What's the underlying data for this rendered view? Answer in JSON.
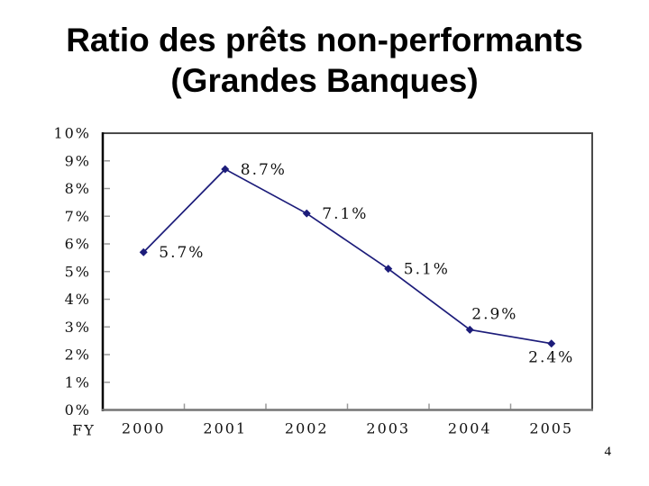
{
  "slide": {
    "title_line1": "Ratio des prêts non-performants",
    "title_line2": "(Grandes Banques)",
    "page_number": "4"
  },
  "chart_data": {
    "type": "line",
    "title": "Ratio des prêts non-performants (Grandes Banques)",
    "xlabel": "FY",
    "ylabel": "",
    "categories": [
      "2000",
      "2001",
      "2002",
      "2003",
      "2004",
      "2005"
    ],
    "series": [
      {
        "name": "npl-ratio",
        "values": [
          5.7,
          8.7,
          7.1,
          5.1,
          2.9,
          2.4
        ],
        "color": "#1c1c7a",
        "marker": "diamond"
      }
    ],
    "data_labels": [
      {
        "text": "5.7%",
        "placement": "right"
      },
      {
        "text": "8.7%",
        "placement": "right"
      },
      {
        "text": "7.1%",
        "placement": "right"
      },
      {
        "text": "5.1%",
        "placement": "right"
      },
      {
        "text": "2.9%",
        "placement": "above"
      },
      {
        "text": "2.4%",
        "placement": "below"
      }
    ],
    "y_tick_labels": [
      "10%",
      "9%",
      "8%",
      "7%",
      "6%",
      "5%",
      "4%",
      "3%",
      "2%",
      "1%",
      "0%"
    ],
    "ylim": [
      0,
      10
    ],
    "grid": false,
    "legend": "none",
    "colors": {
      "plot_border": "#4a4a4a",
      "y_axis": "#000000",
      "x_axis": "#757575",
      "tick": "#999999",
      "background": "#ffffff"
    }
  }
}
